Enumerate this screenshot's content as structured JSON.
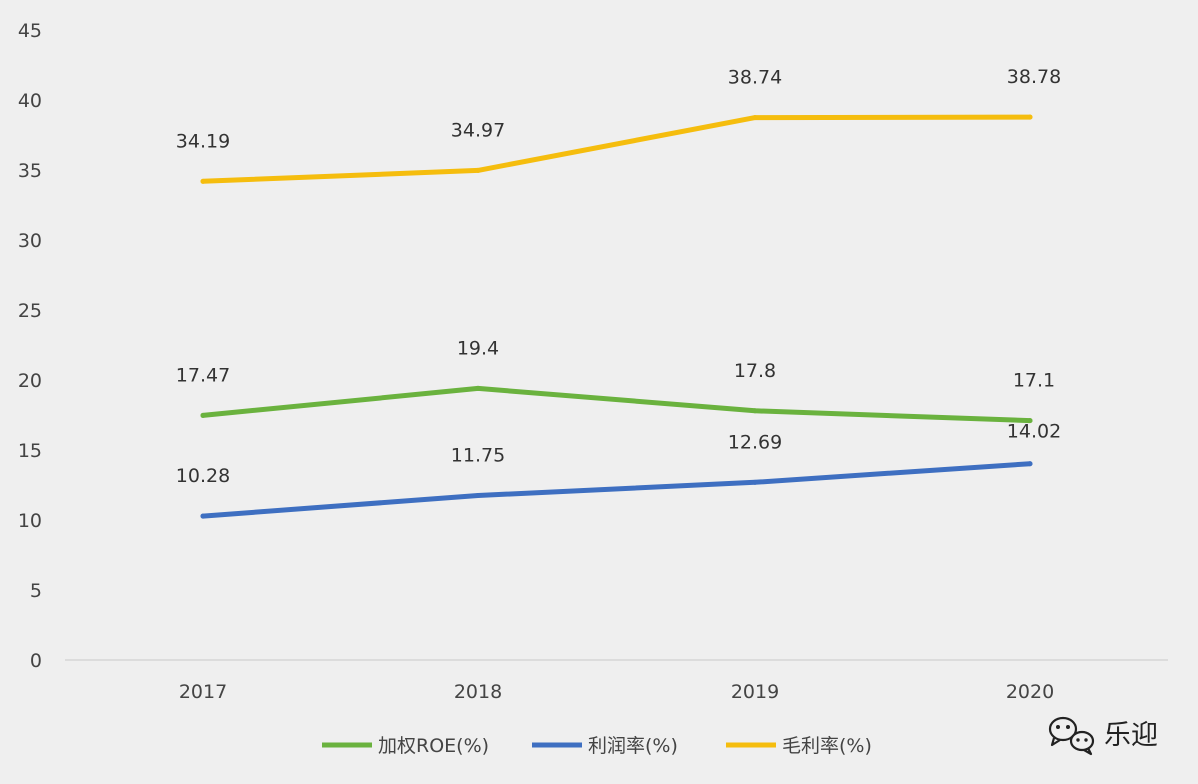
{
  "chart_data": {
    "type": "line",
    "categories": [
      "2017",
      "2018",
      "2019",
      "2020"
    ],
    "ylim": [
      0,
      45
    ],
    "yticks": [
      0,
      5,
      10,
      15,
      20,
      25,
      30,
      35,
      40,
      45
    ],
    "grid": false,
    "legend_position": "bottom",
    "series": [
      {
        "name": "加权ROE(%)",
        "color": "#6ab23e",
        "values": [
          17.47,
          19.4,
          17.8,
          17.1
        ],
        "labels": [
          "17.47",
          "19.4",
          "17.8",
          "17.1"
        ]
      },
      {
        "name": "利润率(%)",
        "color": "#3e6fc1",
        "values": [
          10.28,
          11.75,
          12.69,
          14.02
        ],
        "labels": [
          "10.28",
          "11.75",
          "12.69",
          "14.02"
        ]
      },
      {
        "name": "毛利率(%)",
        "color": "#f5bd0e",
        "values": [
          34.19,
          34.97,
          38.74,
          38.78
        ],
        "labels": [
          "34.19",
          "34.97",
          "38.74",
          "38.78"
        ]
      }
    ]
  },
  "watermark": {
    "text": "乐迎",
    "icon": "wechat-icon"
  }
}
